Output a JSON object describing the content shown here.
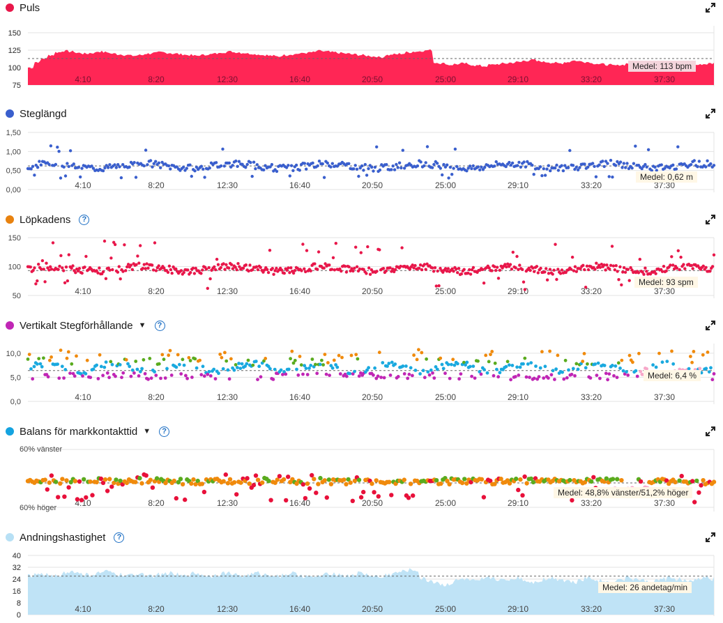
{
  "x_ticks": [
    "4:10",
    "8:20",
    "12:30",
    "16:40",
    "20:50",
    "25:00",
    "29:10",
    "33:20",
    "37:30"
  ],
  "panels": [
    {
      "title": "Puls",
      "dot_color": "#e8174a",
      "has_help": false,
      "has_caret": false,
      "y_ticks": [
        "150",
        "125",
        "100",
        "75"
      ],
      "avg_label": "Medel: 113 bpm"
    },
    {
      "title": "Steglängd",
      "dot_color": "#3a5fcd",
      "has_help": false,
      "has_caret": false,
      "y_ticks": [
        "1,50",
        "1,00",
        "0,50",
        "0,00"
      ],
      "avg_label": "Medel: 0,62 m"
    },
    {
      "title": "Löpkadens",
      "dot_color": "#e8820f",
      "has_help": true,
      "has_caret": false,
      "y_ticks": [
        "150",
        "100",
        "50"
      ],
      "avg_label": "Medel: 93 spm"
    },
    {
      "title": "Vertikalt Stegförhållande",
      "dot_color": "#c026b5",
      "has_help": true,
      "has_caret": true,
      "y_ticks": [
        "10,0",
        "5,0",
        "0,0"
      ],
      "avg_label": "Medel: 6,4 %"
    },
    {
      "title": "Balans för markkontakttid",
      "dot_color": "#14a3e0",
      "has_help": true,
      "has_caret": true,
      "y_ticks": [
        "60% vänster",
        "60% höger"
      ],
      "avg_label": "Medel: 48,8% vänster/51,2% höger"
    },
    {
      "title": "Andningshastighet",
      "dot_color": "#b7e0f5",
      "has_help": true,
      "has_caret": false,
      "y_ticks": [
        "40",
        "32",
        "24",
        "16",
        "8",
        "0"
      ],
      "avg_label": "Medel: 26 andetag/min"
    }
  ],
  "help_glyph": "?",
  "caret_glyph": "▼",
  "colors": {
    "puls_fill": "#ff2655",
    "stride": "#3a5fcd",
    "cadence": "#e8174a",
    "vr_blue": "#1aa9df",
    "vr_green": "#5aab1e",
    "vr_purple": "#c026b5",
    "vr_orange": "#f08a0c",
    "vr_pink": "#f7a8c9",
    "gct_orange": "#f08a0c",
    "gct_green": "#5aab1e",
    "gct_red": "#e8103a",
    "gct_pink": "#f7a8c9",
    "resp_fill": "#bfe3f6",
    "grid": "#e3e3e3",
    "avg_line": "#666666"
  },
  "chart_data": [
    {
      "type": "area",
      "title": "Puls",
      "unit": "bpm",
      "ylim": [
        75,
        160
      ],
      "average": 113,
      "x_ticks": [
        "4:10",
        "8:20",
        "12:30",
        "16:40",
        "20:50",
        "25:00",
        "29:10",
        "33:20",
        "37:30"
      ],
      "series": [
        {
          "values": [
            100,
            108,
            113,
            118,
            122,
            124,
            123,
            121,
            120,
            121,
            123,
            122,
            120,
            119,
            118,
            117,
            118,
            120,
            121,
            122,
            121,
            120,
            119,
            118,
            117,
            118,
            119,
            120,
            122,
            123,
            122,
            121,
            120,
            119,
            118,
            117,
            116,
            118,
            119,
            120,
            121,
            122,
            124,
            123,
            122,
            121,
            120,
            119,
            118,
            117,
            116,
            115,
            118,
            119,
            120,
            122,
            123,
            124,
            125,
            107,
            106,
            104,
            105,
            106,
            104,
            103,
            102,
            104,
            105,
            106,
            107,
            108,
            110,
            111,
            109,
            108,
            107,
            106,
            108,
            110,
            109,
            108,
            106,
            105,
            104,
            103,
            104,
            106,
            107,
            108,
            109,
            108,
            107,
            105,
            104,
            103,
            102,
            104,
            105,
            106
          ]
        }
      ]
    },
    {
      "type": "scatter",
      "title": "Steglängd",
      "unit": "m",
      "ylim": [
        0,
        1.5
      ],
      "average": 0.62,
      "x_ticks": [
        "4:10",
        "8:20",
        "12:30",
        "16:40",
        "20:50",
        "25:00",
        "29:10",
        "33:20",
        "37:30"
      ]
    },
    {
      "type": "scatter",
      "title": "Löpkadens",
      "unit": "spm",
      "ylim": [
        50,
        150
      ],
      "average": 93,
      "x_ticks": [
        "4:10",
        "8:20",
        "12:30",
        "16:40",
        "20:50",
        "25:00",
        "29:10",
        "33:20",
        "37:30"
      ]
    },
    {
      "type": "scatter",
      "title": "Vertikalt Stegförhållande",
      "unit": "%",
      "ylim": [
        0,
        10
      ],
      "average": 6.4,
      "x_ticks": [
        "4:10",
        "8:20",
        "12:30",
        "16:40",
        "20:50",
        "25:00",
        "29:10",
        "33:20",
        "37:30"
      ]
    },
    {
      "type": "scatter",
      "title": "Balans för markkontakttid",
      "ylim": [
        "60% höger",
        "60% vänster"
      ],
      "average": "48,8% vänster/51,2% höger",
      "x_ticks": [
        "4:10",
        "8:20",
        "12:30",
        "16:40",
        "20:50",
        "25:00",
        "29:10",
        "33:20",
        "37:30"
      ]
    },
    {
      "type": "area",
      "title": "Andningshastighet",
      "unit": "andetag/min",
      "ylim": [
        0,
        40
      ],
      "average": 26,
      "x_ticks": [
        "4:10",
        "8:20",
        "12:30",
        "16:40",
        "20:50",
        "25:00",
        "29:10",
        "33:20",
        "37:30"
      ],
      "series": [
        {
          "values": [
            26,
            27,
            27,
            26,
            27,
            28,
            29,
            28,
            27,
            27,
            28,
            29,
            28,
            27,
            26,
            27,
            28,
            27,
            26,
            27,
            28,
            27,
            26,
            27,
            28,
            27,
            26,
            27,
            28,
            28,
            27,
            26,
            27,
            28,
            27,
            27,
            26,
            27,
            28,
            27,
            26,
            25,
            26,
            27,
            28,
            27,
            26,
            27,
            28,
            27,
            26,
            25,
            27,
            28,
            29,
            30,
            30,
            24,
            23,
            22,
            20,
            21,
            23,
            24,
            23,
            22,
            24,
            25,
            24,
            23,
            24,
            25,
            23,
            22,
            23,
            24,
            25,
            24,
            23,
            22,
            24,
            25,
            24,
            23,
            22,
            23,
            24,
            25,
            24,
            23,
            22,
            23,
            24,
            25,
            24,
            23,
            22,
            24,
            25,
            24
          ]
        }
      ]
    }
  ]
}
